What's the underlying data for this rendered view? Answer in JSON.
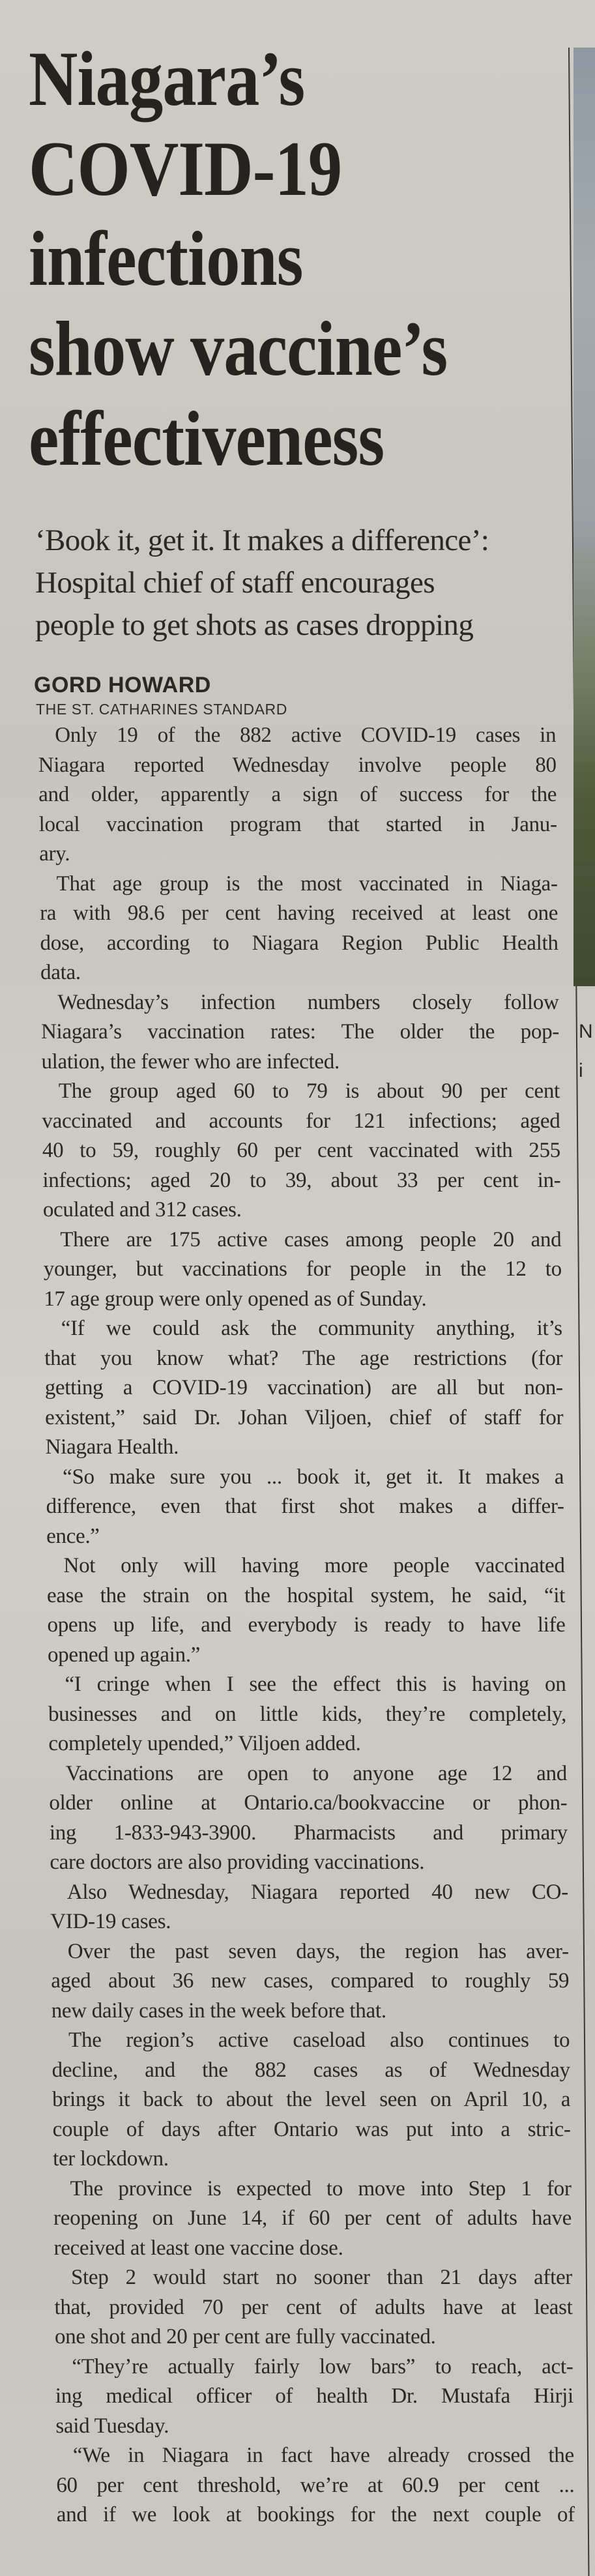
{
  "headline": [
    "Niagara’s",
    "COVID-19",
    "infections",
    "show vaccine’s",
    "effectiveness"
  ],
  "deck": [
    "‘Book it, get it. It makes a difference’:",
    "Hospital chief of staff encourages",
    "people to get shots as cases dropping"
  ],
  "byline": {
    "author": "GORD HOWARD",
    "source": "THE ST. CATHARINES STANDARD"
  },
  "adjacent_column_fragments": [
    "N",
    "i"
  ],
  "colors": {
    "paper": "#cbc8c2",
    "ink": "#2a2724"
  },
  "paragraphs": [
    [
      "Only 19 of the 882 active COVID-19 cases in",
      "Niagara reported Wednesday involve people 80",
      "and older, apparently a sign of success for the",
      "local vaccination program that started in Janu-",
      "ary."
    ],
    [
      "That age group is the most vaccinated in Niaga-",
      "ra with 98.6 per cent having received at least one",
      "dose, according to Niagara Region Public Health",
      "data."
    ],
    [
      "Wednesday’s infection numbers closely follow",
      "Niagara’s vaccination rates: The older the pop-",
      "ulation, the fewer who are infected."
    ],
    [
      "The group aged 60 to 79 is about 90 per cent",
      "vaccinated and accounts for 121 infections; aged",
      "40 to 59, roughly 60 per cent vaccinated with 255",
      "infections; aged 20 to 39, about 33 per cent in-",
      "oculated and 312 cases."
    ],
    [
      "There are 175 active cases among people 20 and",
      "younger, but vaccinations for people in the 12 to",
      "17 age group were only opened as of Sunday."
    ],
    [
      "“If we could ask the community anything, it’s",
      "that you know what? The age restrictions (for",
      "getting a COVID-19 vaccination) are all but non-",
      "existent,” said Dr. Johan Viljoen, chief of staff for",
      "Niagara Health."
    ],
    [
      "“So make sure you ... book it, get it. It makes a",
      "difference, even that first shot makes a differ-",
      "ence.”"
    ],
    [
      "Not only will having more people vaccinated",
      "ease the strain on the hospital system, he said, “it",
      "opens up life, and everybody is ready to have life",
      "opened up again.”"
    ],
    [
      "“I cringe when I see the effect this is having on",
      "businesses and on little kids, they’re completely,",
      "completely upended,” Viljoen added."
    ],
    [
      "Vaccinations are open to anyone age 12 and",
      "older online at Ontario.ca/bookvaccine or phon-",
      "ing 1-833-943-3900. Pharmacists and primary",
      "care doctors are also providing vaccinations."
    ],
    [
      "Also Wednesday, Niagara reported 40 new CO-",
      "VID-19 cases."
    ],
    [
      "Over the past seven days, the region has aver-",
      "aged about 36 new cases, compared to roughly 59",
      "new daily cases in the week before that."
    ],
    [
      "The region’s active caseload also continues to",
      "decline, and the 882 cases as of Wednesday",
      "brings it back to about the level seen on April 10, a",
      "couple of days after Ontario was put into a stric-",
      "ter lockdown."
    ],
    [
      "The province is expected to move into Step 1 for",
      "reopening on June 14, if 60 per cent of adults have",
      "received at least one vaccine dose."
    ],
    [
      "Step 2 would start no sooner than 21 days after",
      "that, provided 70 per cent of adults have at least",
      "one shot and 20 per cent are fully vaccinated."
    ],
    [
      "“They’re actually fairly low bars” to reach, act-",
      "ing medical officer of health Dr. Mustafa Hirji",
      "said Tuesday."
    ],
    [
      "“We in Niagara in fact have already crossed the",
      "60 per cent threshold, we’re at 60.9 per cent ...",
      "and if we look at bookings for the next couple of"
    ]
  ]
}
